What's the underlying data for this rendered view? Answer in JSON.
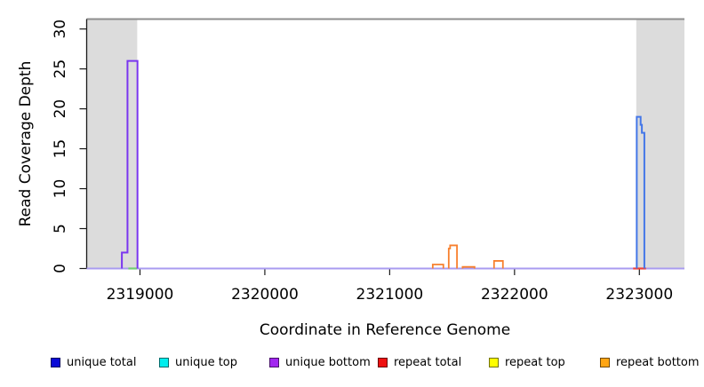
{
  "figure": {
    "background": "#ffffff",
    "plot_frame_color": "#8e8e8e",
    "shade_color": "#dcdcdc"
  },
  "axes": {
    "x_title": "Coordinate in Reference Genome",
    "y_title": "Read Coverage Depth",
    "x_ticks": [
      {
        "value": 2319000,
        "label": "2319000"
      },
      {
        "value": 2320000,
        "label": "2320000"
      },
      {
        "value": 2321000,
        "label": "2321000"
      },
      {
        "value": 2322000,
        "label": "2322000"
      },
      {
        "value": 2323000,
        "label": "2323000"
      }
    ],
    "y_ticks": [
      {
        "value": 0,
        "label": "0"
      },
      {
        "value": 5,
        "label": "5"
      },
      {
        "value": 10,
        "label": "10"
      },
      {
        "value": 15,
        "label": "15"
      },
      {
        "value": 20,
        "label": "20"
      },
      {
        "value": 25,
        "label": "25"
      },
      {
        "value": 30,
        "label": "30"
      }
    ]
  },
  "chart_data": {
    "type": "line",
    "title": "",
    "xlabel": "Coordinate in Reference Genome",
    "ylabel": "Read Coverage Depth",
    "xlim": [
      2318573,
      2323361
    ],
    "ylim": [
      0,
      30
    ],
    "grid": false,
    "legend_position": "bottom",
    "shaded_regions": [
      {
        "from": 2318573,
        "to": 2318978
      },
      {
        "from": 2322975,
        "to": 2323361
      }
    ],
    "series": [
      {
        "name": "unique bottom baseline",
        "color": "#a99bf0",
        "width": 2,
        "baseline": true,
        "segments": []
      },
      {
        "name": "unique top",
        "color": "#72cd72",
        "width": 2.2,
        "baseline": false,
        "segments": [
          [
            2318907,
            2318975,
            0
          ]
        ]
      },
      {
        "name": "repeat total",
        "color": "#f23f39",
        "width": 2.2,
        "baseline": false,
        "segments": [
          [
            2322950,
            2323053,
            0
          ]
        ]
      },
      {
        "name": "repeat bottom",
        "color": "#f8802e",
        "width": 1.8,
        "baseline": false,
        "segments": [
          [
            2321345,
            2321430,
            0.5
          ],
          [
            2321473,
            2321484,
            2.5
          ],
          [
            2321484,
            2321539,
            2.9
          ],
          [
            2321584,
            2321680,
            0.2
          ],
          [
            2321836,
            2321907,
            0.95
          ]
        ]
      },
      {
        "name": "unique bottom spike",
        "color": "#7a36ef",
        "width": 2,
        "baseline": false,
        "segments": [
          [
            2318855,
            2318900,
            2
          ],
          [
            2318900,
            2318980,
            26
          ]
        ]
      },
      {
        "name": "unique total spike",
        "color": "#4477e8",
        "width": 2,
        "baseline": false,
        "segments": [
          [
            2322979,
            2323010,
            19
          ],
          [
            2323010,
            2323020,
            18
          ],
          [
            2323020,
            2323040,
            17
          ]
        ]
      }
    ]
  },
  "legend": {
    "items": [
      {
        "label": "unique total",
        "color": "#0a0ad6"
      },
      {
        "label": "unique top",
        "color": "#00eeee"
      },
      {
        "label": "unique bottom",
        "color": "#a226f0"
      },
      {
        "label": "repeat total",
        "color": "#ee1010"
      },
      {
        "label": "repeat top",
        "color": "#ffff00"
      },
      {
        "label": "repeat bottom",
        "color": "#ffa513"
      }
    ]
  }
}
